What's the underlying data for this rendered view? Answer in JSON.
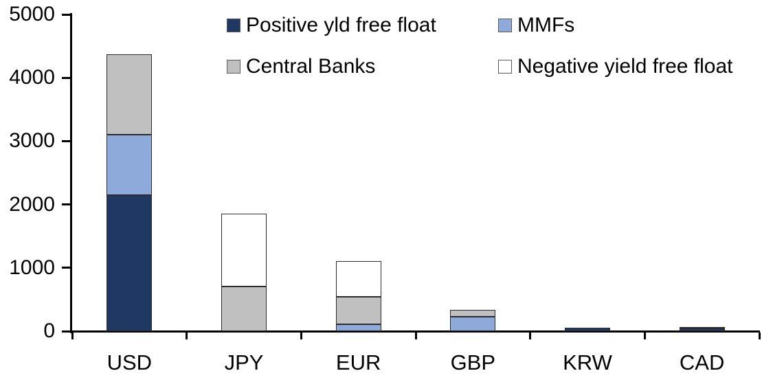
{
  "chart_data": {
    "type": "bar",
    "stacked": true,
    "title": "",
    "xlabel": "",
    "ylabel": "",
    "categories": [
      "USD",
      "JPY",
      "EUR",
      "GBP",
      "KRW",
      "CAD"
    ],
    "series": [
      {
        "name": "Positive yld free float",
        "color": "#1f3864",
        "values": [
          2150,
          0,
          0,
          0,
          50,
          40
        ]
      },
      {
        "name": "MMFs",
        "color": "#8eaadb",
        "values": [
          950,
          0,
          110,
          230,
          0,
          0
        ]
      },
      {
        "name": "Central Banks",
        "color": "#c0c0c0",
        "values": [
          1270,
          700,
          430,
          110,
          0,
          20
        ]
      },
      {
        "name": "Negative yield free float",
        "color": "#ffffff",
        "values": [
          0,
          1150,
          570,
          0,
          0,
          0
        ]
      }
    ],
    "totals": [
      4370,
      1850,
      1110,
      340,
      50,
      60
    ],
    "ylim": [
      0,
      5000
    ],
    "ytick_step": 1000,
    "ytick_labels": [
      "0",
      "1000",
      "2000",
      "3000",
      "4000",
      "5000"
    ],
    "grid": false,
    "legend_position": "top-inside",
    "legend_rows": [
      [
        "Positive yld free float",
        "MMFs"
      ],
      [
        "Central Banks",
        "Negative yield free float"
      ]
    ],
    "axis_color": "#000000",
    "background_color": "#ffffff"
  }
}
